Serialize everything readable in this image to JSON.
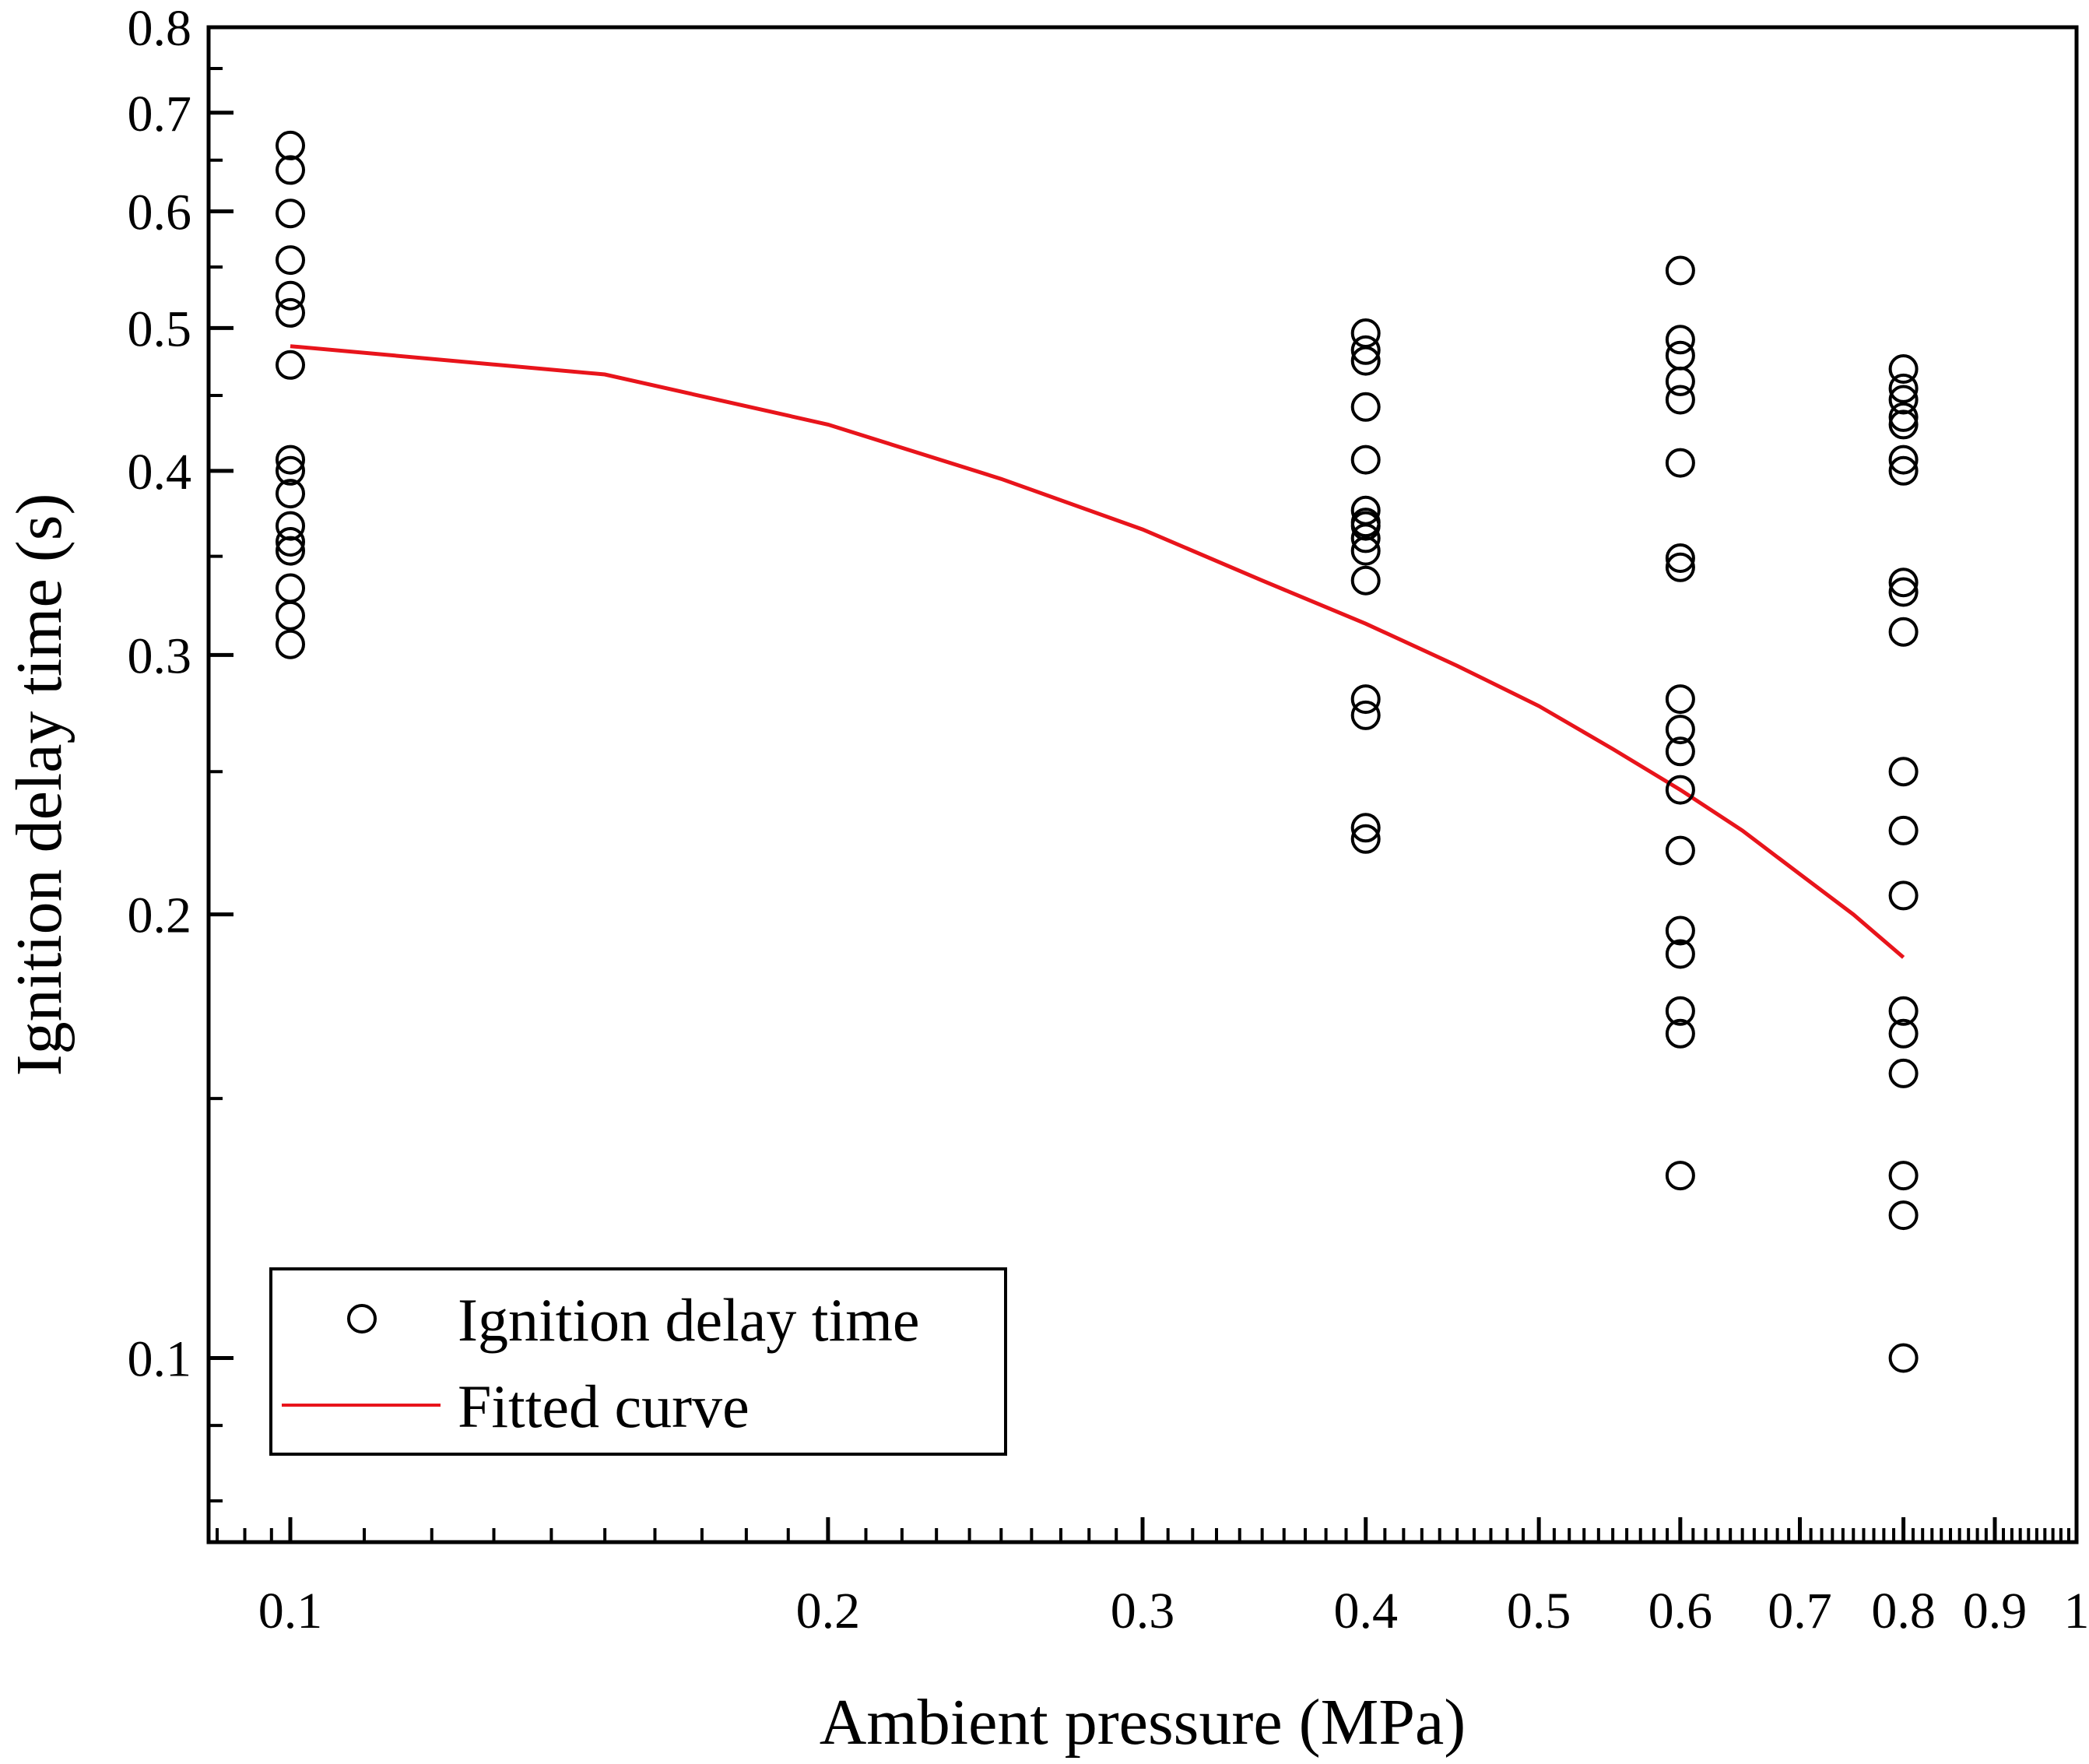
{
  "chart_data": {
    "type": "scatter",
    "title": "",
    "xlabel": "Ambient pressure (MPa)",
    "ylabel": "Ignition delay time (s)",
    "xscale": "log",
    "yscale": "log",
    "xlim": [
      0.09,
      1.0
    ],
    "ylim": [
      0.075,
      0.8
    ],
    "x_ticks": [
      {
        "value": 0.1,
        "label": "0.1"
      },
      {
        "value": 0.2,
        "label": "0.2"
      },
      {
        "value": 0.3,
        "label": "0.3"
      },
      {
        "value": 0.4,
        "label": "0.4"
      },
      {
        "value": 0.5,
        "label": "0.5"
      },
      {
        "value": 0.6,
        "label": "0.6"
      },
      {
        "value": 0.7,
        "label": "0.7"
      },
      {
        "value": 0.8,
        "label": "0.8"
      },
      {
        "value": 0.9,
        "label": "0.9"
      },
      {
        "value": 1.0,
        "label": "1"
      }
    ],
    "y_ticks": [
      {
        "value": 0.1,
        "label": "0.1"
      },
      {
        "value": 0.2,
        "label": "0.2"
      },
      {
        "value": 0.3,
        "label": "0.3"
      },
      {
        "value": 0.4,
        "label": "0.4"
      },
      {
        "value": 0.5,
        "label": "0.5"
      },
      {
        "value": 0.6,
        "label": "0.6"
      },
      {
        "value": 0.7,
        "label": "0.7"
      },
      {
        "value": 0.8,
        "label": "0.8"
      }
    ],
    "series": [
      {
        "name": "Ignition delay time",
        "marker": "open-circle",
        "color": "#000000",
        "points": [
          [
            0.1,
            0.665
          ],
          [
            0.1,
            0.64
          ],
          [
            0.1,
            0.598
          ],
          [
            0.1,
            0.556
          ],
          [
            0.1,
            0.526
          ],
          [
            0.1,
            0.512
          ],
          [
            0.1,
            0.472
          ],
          [
            0.1,
            0.407
          ],
          [
            0.1,
            0.4
          ],
          [
            0.1,
            0.386
          ],
          [
            0.1,
            0.367
          ],
          [
            0.1,
            0.358
          ],
          [
            0.1,
            0.353
          ],
          [
            0.1,
            0.333
          ],
          [
            0.1,
            0.319
          ],
          [
            0.1,
            0.305
          ],
          [
            0.4,
            0.496
          ],
          [
            0.4,
            0.483
          ],
          [
            0.4,
            0.475
          ],
          [
            0.4,
            0.442
          ],
          [
            0.4,
            0.407
          ],
          [
            0.4,
            0.376
          ],
          [
            0.4,
            0.369
          ],
          [
            0.4,
            0.367
          ],
          [
            0.4,
            0.36
          ],
          [
            0.4,
            0.353
          ],
          [
            0.4,
            0.337
          ],
          [
            0.4,
            0.28
          ],
          [
            0.4,
            0.273
          ],
          [
            0.4,
            0.229
          ],
          [
            0.4,
            0.225
          ],
          [
            0.6,
            0.547
          ],
          [
            0.6,
            0.491
          ],
          [
            0.6,
            0.479
          ],
          [
            0.6,
            0.46
          ],
          [
            0.6,
            0.447
          ],
          [
            0.6,
            0.405
          ],
          [
            0.6,
            0.349
          ],
          [
            0.6,
            0.344
          ],
          [
            0.6,
            0.28
          ],
          [
            0.6,
            0.267
          ],
          [
            0.6,
            0.258
          ],
          [
            0.6,
            0.243
          ],
          [
            0.6,
            0.221
          ],
          [
            0.6,
            0.195
          ],
          [
            0.6,
            0.188
          ],
          [
            0.6,
            0.172
          ],
          [
            0.6,
            0.166
          ],
          [
            0.6,
            0.133
          ],
          [
            0.8,
            0.469
          ],
          [
            0.8,
            0.455
          ],
          [
            0.8,
            0.447
          ],
          [
            0.8,
            0.435
          ],
          [
            0.8,
            0.43
          ],
          [
            0.8,
            0.407
          ],
          [
            0.8,
            0.4
          ],
          [
            0.8,
            0.336
          ],
          [
            0.8,
            0.331
          ],
          [
            0.8,
            0.311
          ],
          [
            0.8,
            0.25
          ],
          [
            0.8,
            0.228
          ],
          [
            0.8,
            0.206
          ],
          [
            0.8,
            0.172
          ],
          [
            0.8,
            0.166
          ],
          [
            0.8,
            0.156
          ],
          [
            0.8,
            0.133
          ],
          [
            0.8,
            0.125
          ],
          [
            0.8,
            0.1
          ]
        ]
      },
      {
        "name": "Fitted curve",
        "type": "line",
        "color": "#e8141b",
        "points": [
          [
            0.1,
            0.486
          ],
          [
            0.15,
            0.465
          ],
          [
            0.2,
            0.43
          ],
          [
            0.25,
            0.395
          ],
          [
            0.3,
            0.365
          ],
          [
            0.35,
            0.337
          ],
          [
            0.4,
            0.315
          ],
          [
            0.45,
            0.295
          ],
          [
            0.5,
            0.277
          ],
          [
            0.55,
            0.259
          ],
          [
            0.6,
            0.243
          ],
          [
            0.65,
            0.228
          ],
          [
            0.7,
            0.213
          ],
          [
            0.75,
            0.2
          ],
          [
            0.8,
            0.187
          ]
        ]
      }
    ],
    "legend": {
      "position": "bottom-left",
      "entries": [
        {
          "label": "Ignition delay time",
          "marker": "open-circle"
        },
        {
          "label": "Fitted curve",
          "marker": "line"
        }
      ]
    }
  }
}
